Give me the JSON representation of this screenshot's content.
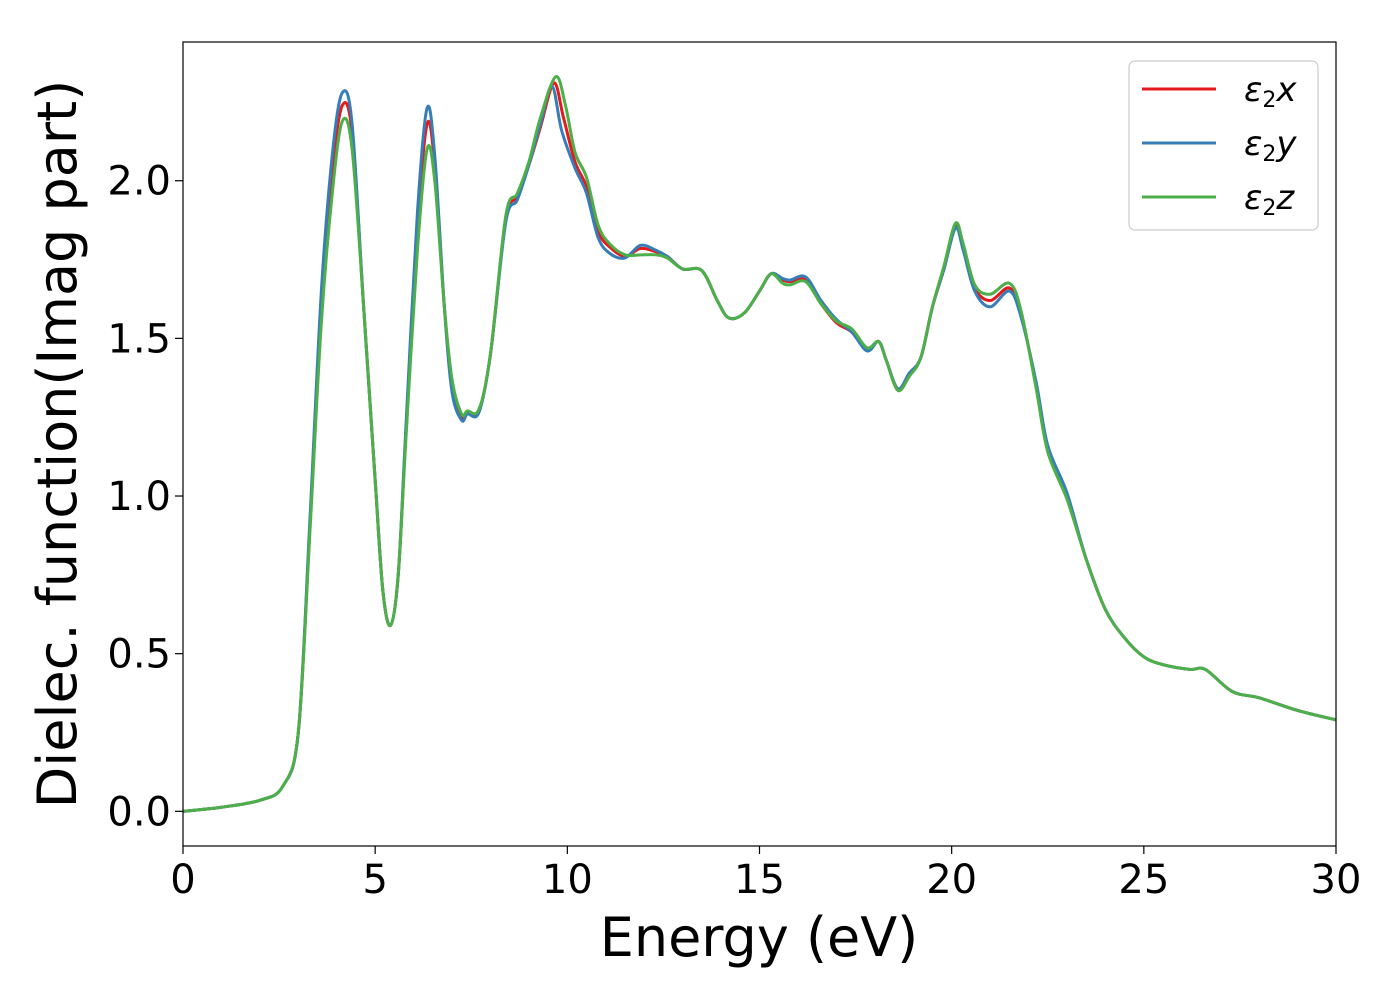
{
  "chart_data": {
    "type": "line",
    "xlabel": "Energy (eV)",
    "ylabel": "Dielec. function(Imag part)",
    "xlim": [
      0,
      30
    ],
    "ylim": [
      -0.11,
      2.44
    ],
    "x_ticks": [
      0,
      5,
      10,
      15,
      20,
      25,
      30
    ],
    "x_tick_labels": [
      "0",
      "5",
      "10",
      "15",
      "20",
      "25",
      "30"
    ],
    "y_ticks": [
      0.0,
      0.5,
      1.0,
      1.5,
      2.0
    ],
    "y_tick_labels": [
      "0.0",
      "0.5",
      "1.0",
      "1.5",
      "2.0"
    ],
    "grid": false,
    "legend_position": "top-right",
    "series": [
      {
        "name": "ε₂x",
        "legend_label": "ε2x",
        "color": "#e41a1c",
        "points": [
          [
            0,
            0
          ],
          [
            1,
            0.013
          ],
          [
            2,
            0.035
          ],
          [
            2.6,
            0.08
          ],
          [
            3.0,
            0.25
          ],
          [
            3.3,
            0.9
          ],
          [
            3.6,
            1.6
          ],
          [
            3.9,
            2.05
          ],
          [
            4.15,
            2.24
          ],
          [
            4.4,
            2.15
          ],
          [
            4.7,
            1.6
          ],
          [
            5.0,
            1.05
          ],
          [
            5.2,
            0.7
          ],
          [
            5.4,
            0.59
          ],
          [
            5.6,
            0.75
          ],
          [
            5.8,
            1.2
          ],
          [
            6.1,
            1.85
          ],
          [
            6.35,
            2.18
          ],
          [
            6.55,
            2.05
          ],
          [
            6.8,
            1.6
          ],
          [
            7.0,
            1.35
          ],
          [
            7.25,
            1.25
          ],
          [
            7.4,
            1.265
          ],
          [
            7.7,
            1.27
          ],
          [
            8.0,
            1.45
          ],
          [
            8.4,
            1.88
          ],
          [
            8.7,
            1.95
          ],
          [
            9.0,
            2.05
          ],
          [
            9.3,
            2.17
          ],
          [
            9.65,
            2.31
          ],
          [
            9.9,
            2.2
          ],
          [
            10.2,
            2.06
          ],
          [
            10.5,
            1.98
          ],
          [
            10.8,
            1.84
          ],
          [
            11.1,
            1.79
          ],
          [
            11.5,
            1.76
          ],
          [
            11.9,
            1.785
          ],
          [
            12.3,
            1.775
          ],
          [
            12.6,
            1.76
          ],
          [
            13.0,
            1.72
          ],
          [
            13.5,
            1.715
          ],
          [
            13.9,
            1.62
          ],
          [
            14.2,
            1.565
          ],
          [
            14.6,
            1.58
          ],
          [
            15.0,
            1.65
          ],
          [
            15.3,
            1.705
          ],
          [
            15.6,
            1.685
          ],
          [
            15.8,
            1.68
          ],
          [
            16.2,
            1.685
          ],
          [
            16.6,
            1.61
          ],
          [
            17.0,
            1.55
          ],
          [
            17.4,
            1.52
          ],
          [
            17.8,
            1.465
          ],
          [
            18.1,
            1.49
          ],
          [
            18.3,
            1.43
          ],
          [
            18.6,
            1.34
          ],
          [
            18.9,
            1.39
          ],
          [
            19.2,
            1.44
          ],
          [
            19.5,
            1.6
          ],
          [
            19.8,
            1.72
          ],
          [
            20.1,
            1.855
          ],
          [
            20.3,
            1.79
          ],
          [
            20.6,
            1.66
          ],
          [
            21.0,
            1.62
          ],
          [
            21.5,
            1.66
          ],
          [
            21.8,
            1.58
          ],
          [
            22.2,
            1.35
          ],
          [
            22.5,
            1.15
          ],
          [
            23.0,
            1.0
          ],
          [
            23.5,
            0.8
          ],
          [
            24.0,
            0.64
          ],
          [
            24.5,
            0.55
          ],
          [
            25.0,
            0.49
          ],
          [
            25.5,
            0.465
          ],
          [
            26.2,
            0.45
          ],
          [
            26.6,
            0.45
          ],
          [
            27.3,
            0.38
          ],
          [
            28.0,
            0.36
          ],
          [
            29.0,
            0.32
          ],
          [
            30.0,
            0.29
          ]
        ]
      },
      {
        "name": "ε₂y",
        "legend_label": "ε2y",
        "color": "#377eb8",
        "points": [
          [
            0,
            0
          ],
          [
            1,
            0.013
          ],
          [
            2,
            0.035
          ],
          [
            2.6,
            0.08
          ],
          [
            3.0,
            0.25
          ],
          [
            3.3,
            0.92
          ],
          [
            3.6,
            1.65
          ],
          [
            3.9,
            2.1
          ],
          [
            4.15,
            2.28
          ],
          [
            4.4,
            2.18
          ],
          [
            4.7,
            1.6
          ],
          [
            5.0,
            1.05
          ],
          [
            5.2,
            0.7
          ],
          [
            5.4,
            0.59
          ],
          [
            5.6,
            0.75
          ],
          [
            5.8,
            1.22
          ],
          [
            6.1,
            1.9
          ],
          [
            6.35,
            2.23
          ],
          [
            6.55,
            2.08
          ],
          [
            6.8,
            1.6
          ],
          [
            7.0,
            1.33
          ],
          [
            7.25,
            1.24
          ],
          [
            7.4,
            1.26
          ],
          [
            7.7,
            1.265
          ],
          [
            8.0,
            1.45
          ],
          [
            8.4,
            1.87
          ],
          [
            8.7,
            1.94
          ],
          [
            9.0,
            2.05
          ],
          [
            9.3,
            2.18
          ],
          [
            9.6,
            2.3
          ],
          [
            9.85,
            2.16
          ],
          [
            10.2,
            2.04
          ],
          [
            10.5,
            1.96
          ],
          [
            10.8,
            1.82
          ],
          [
            11.1,
            1.77
          ],
          [
            11.5,
            1.755
          ],
          [
            11.9,
            1.795
          ],
          [
            12.3,
            1.78
          ],
          [
            12.6,
            1.76
          ],
          [
            13.0,
            1.72
          ],
          [
            13.5,
            1.715
          ],
          [
            13.9,
            1.62
          ],
          [
            14.2,
            1.565
          ],
          [
            14.6,
            1.58
          ],
          [
            15.0,
            1.65
          ],
          [
            15.3,
            1.705
          ],
          [
            15.6,
            1.69
          ],
          [
            15.8,
            1.685
          ],
          [
            16.2,
            1.695
          ],
          [
            16.6,
            1.62
          ],
          [
            17.0,
            1.56
          ],
          [
            17.4,
            1.52
          ],
          [
            17.8,
            1.46
          ],
          [
            18.1,
            1.49
          ],
          [
            18.3,
            1.43
          ],
          [
            18.6,
            1.34
          ],
          [
            18.9,
            1.39
          ],
          [
            19.2,
            1.44
          ],
          [
            19.5,
            1.6
          ],
          [
            19.8,
            1.72
          ],
          [
            20.1,
            1.85
          ],
          [
            20.3,
            1.78
          ],
          [
            20.6,
            1.65
          ],
          [
            21.0,
            1.6
          ],
          [
            21.5,
            1.65
          ],
          [
            21.8,
            1.57
          ],
          [
            22.2,
            1.36
          ],
          [
            22.5,
            1.16
          ],
          [
            23.0,
            1.01
          ],
          [
            23.5,
            0.8
          ],
          [
            24.0,
            0.64
          ],
          [
            24.5,
            0.55
          ],
          [
            25.0,
            0.49
          ],
          [
            25.5,
            0.465
          ],
          [
            26.2,
            0.45
          ],
          [
            26.6,
            0.45
          ],
          [
            27.3,
            0.38
          ],
          [
            28.0,
            0.36
          ],
          [
            29.0,
            0.32
          ],
          [
            30.0,
            0.29
          ]
        ]
      },
      {
        "name": "ε₂z",
        "legend_label": "ε2z",
        "color": "#4daf4a",
        "points": [
          [
            0,
            0
          ],
          [
            1,
            0.013
          ],
          [
            2,
            0.035
          ],
          [
            2.6,
            0.08
          ],
          [
            3.0,
            0.25
          ],
          [
            3.3,
            0.88
          ],
          [
            3.6,
            1.55
          ],
          [
            3.9,
            1.98
          ],
          [
            4.15,
            2.19
          ],
          [
            4.4,
            2.1
          ],
          [
            4.7,
            1.6
          ],
          [
            5.0,
            1.05
          ],
          [
            5.2,
            0.7
          ],
          [
            5.4,
            0.59
          ],
          [
            5.6,
            0.75
          ],
          [
            5.8,
            1.18
          ],
          [
            6.1,
            1.78
          ],
          [
            6.35,
            2.1
          ],
          [
            6.55,
            2.0
          ],
          [
            6.8,
            1.6
          ],
          [
            7.0,
            1.37
          ],
          [
            7.25,
            1.26
          ],
          [
            7.4,
            1.27
          ],
          [
            7.7,
            1.275
          ],
          [
            8.0,
            1.45
          ],
          [
            8.4,
            1.89
          ],
          [
            8.7,
            1.96
          ],
          [
            9.0,
            2.06
          ],
          [
            9.3,
            2.2
          ],
          [
            9.7,
            2.33
          ],
          [
            9.95,
            2.24
          ],
          [
            10.2,
            2.09
          ],
          [
            10.5,
            2.01
          ],
          [
            10.8,
            1.86
          ],
          [
            11.1,
            1.8
          ],
          [
            11.5,
            1.765
          ],
          [
            11.9,
            1.765
          ],
          [
            12.3,
            1.765
          ],
          [
            12.6,
            1.755
          ],
          [
            13.0,
            1.72
          ],
          [
            13.5,
            1.715
          ],
          [
            13.9,
            1.62
          ],
          [
            14.2,
            1.565
          ],
          [
            14.6,
            1.58
          ],
          [
            15.0,
            1.65
          ],
          [
            15.3,
            1.705
          ],
          [
            15.6,
            1.675
          ],
          [
            15.8,
            1.67
          ],
          [
            16.2,
            1.68
          ],
          [
            16.6,
            1.61
          ],
          [
            17.0,
            1.555
          ],
          [
            17.4,
            1.53
          ],
          [
            17.8,
            1.47
          ],
          [
            18.1,
            1.49
          ],
          [
            18.3,
            1.43
          ],
          [
            18.6,
            1.335
          ],
          [
            18.9,
            1.38
          ],
          [
            19.2,
            1.44
          ],
          [
            19.5,
            1.6
          ],
          [
            19.8,
            1.73
          ],
          [
            20.1,
            1.865
          ],
          [
            20.3,
            1.8
          ],
          [
            20.6,
            1.67
          ],
          [
            21.0,
            1.64
          ],
          [
            21.5,
            1.675
          ],
          [
            21.8,
            1.59
          ],
          [
            22.2,
            1.34
          ],
          [
            22.5,
            1.14
          ],
          [
            23.0,
            0.99
          ],
          [
            23.5,
            0.8
          ],
          [
            24.0,
            0.64
          ],
          [
            24.5,
            0.55
          ],
          [
            25.0,
            0.49
          ],
          [
            25.5,
            0.465
          ],
          [
            26.2,
            0.45
          ],
          [
            26.6,
            0.45
          ],
          [
            27.3,
            0.38
          ],
          [
            28.0,
            0.36
          ],
          [
            29.0,
            0.32
          ],
          [
            30.0,
            0.29
          ]
        ]
      }
    ]
  }
}
